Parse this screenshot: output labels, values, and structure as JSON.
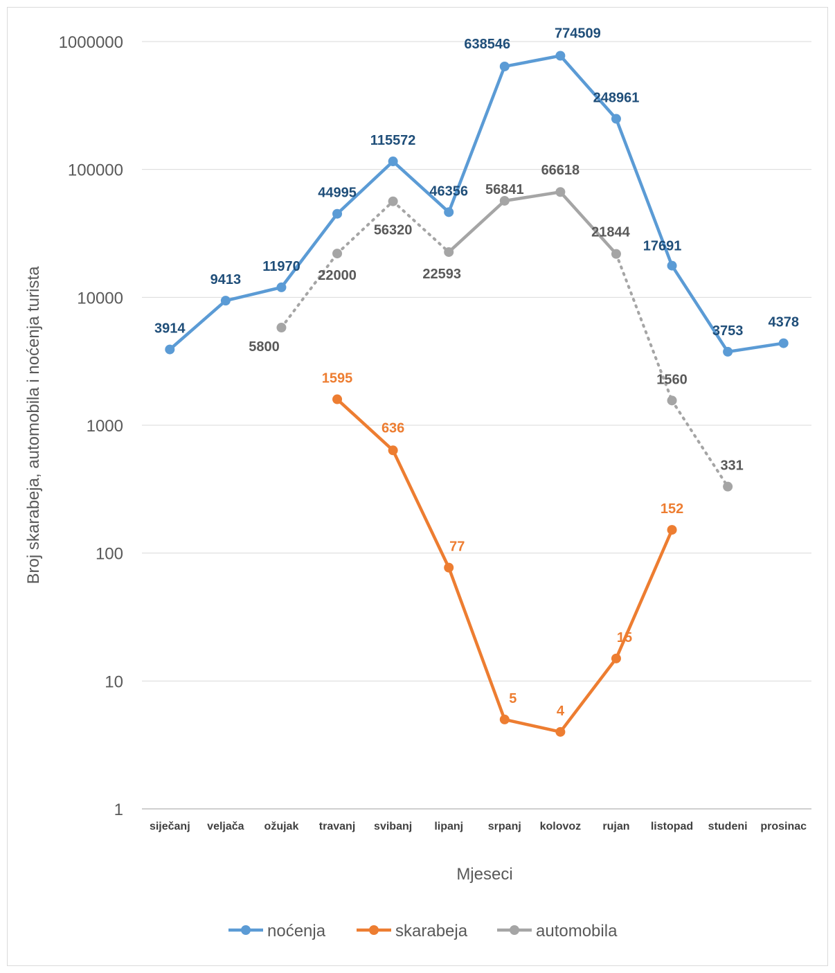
{
  "chart_data": {
    "type": "line",
    "title": "",
    "xlabel": "Mjeseci",
    "ylabel": "Broj skarabeja, automobila i noćenja turista",
    "y_scale": "log",
    "ylim": [
      1,
      1000000
    ],
    "yticks": [
      "1",
      "10",
      "100",
      "1000",
      "10000",
      "100000",
      "1000000"
    ],
    "grid": true,
    "legend_position": "bottom",
    "categories": [
      "siječanj",
      "veljača",
      "ožujak",
      "travanj",
      "svibanj",
      "lipanj",
      "srpanj",
      "kolovoz",
      "rujan",
      "listopad",
      "studeni",
      "prosinac"
    ],
    "series": [
      {
        "name": "noćenja",
        "color": "#5b9bd5",
        "label_color": "#1f4e79",
        "values": [
          3914,
          9413,
          11970,
          44995,
          115572,
          46356,
          638546,
          774509,
          248961,
          17691,
          3753,
          4378
        ],
        "labels": [
          "3914",
          "9413",
          "11970",
          "44995",
          "115572",
          "46356",
          "638546",
          "774509",
          "248961",
          "17691",
          "3753",
          "4378"
        ]
      },
      {
        "name": "skarabeja",
        "color": "#ed7d31",
        "label_color": "#ed7d31",
        "values": [
          null,
          null,
          null,
          1595,
          636,
          77,
          5,
          4,
          15,
          152,
          null,
          null
        ],
        "labels": [
          null,
          null,
          null,
          "1595",
          "636",
          "77",
          "5",
          "4",
          "15",
          "152",
          null,
          null
        ]
      },
      {
        "name": "automobila",
        "color": "#a5a5a5",
        "label_color": "#595959",
        "values": [
          null,
          null,
          5800,
          22000,
          56320,
          22593,
          56841,
          66618,
          21844,
          1560,
          331,
          null
        ],
        "labels": [
          null,
          null,
          "5800",
          "22000",
          "56320",
          "22593",
          "56841",
          "66618",
          "21844",
          "1560",
          "331",
          null
        ],
        "dotted_segments": [
          [
            2,
            3
          ],
          [
            3,
            4
          ],
          [
            4,
            5
          ],
          [
            8,
            9
          ],
          [
            9,
            10
          ]
        ]
      }
    ]
  }
}
